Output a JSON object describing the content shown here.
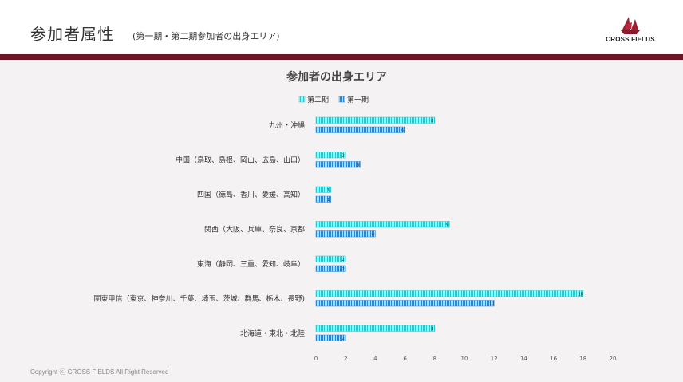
{
  "header": {
    "title": "参加者属性",
    "subtitle": "(第一期・第二期参加者の出身エリア)",
    "logo_text": "CROSS FIELDS"
  },
  "footer": {
    "copyright": "Copyright ⓒ CROSS FIELDS All Right  Reserved"
  },
  "colors": {
    "brand": "#6e1423",
    "series_2": "#2ec4c9",
    "series_1": "#2e86c9"
  },
  "chart_data": {
    "type": "bar",
    "orientation": "horizontal",
    "title": "参加者の出身エリア",
    "categories": [
      "九州・沖縄",
      "中国（鳥取、島根、岡山、広島、山口）",
      "四国（徳島、香川、愛媛、高知）",
      "関西（大阪、兵庫、奈良、京都",
      "東海（静岡、三重、愛知、岐阜）",
      "関東甲信（東京、神奈川、千葉、埼玉、茨城、群馬、栃木、長野)",
      "北海道・東北・北陸"
    ],
    "series": [
      {
        "name": "第二期",
        "values": [
          8,
          2,
          1,
          9,
          2,
          18,
          8
        ]
      },
      {
        "name": "第一期",
        "values": [
          6,
          3,
          1,
          4,
          2,
          12,
          2
        ]
      }
    ],
    "xlim": [
      0,
      20
    ],
    "xticks": [
      0,
      2,
      4,
      6,
      8,
      10,
      12,
      14,
      16,
      18,
      20
    ],
    "legend_position": "top",
    "grid": false
  }
}
